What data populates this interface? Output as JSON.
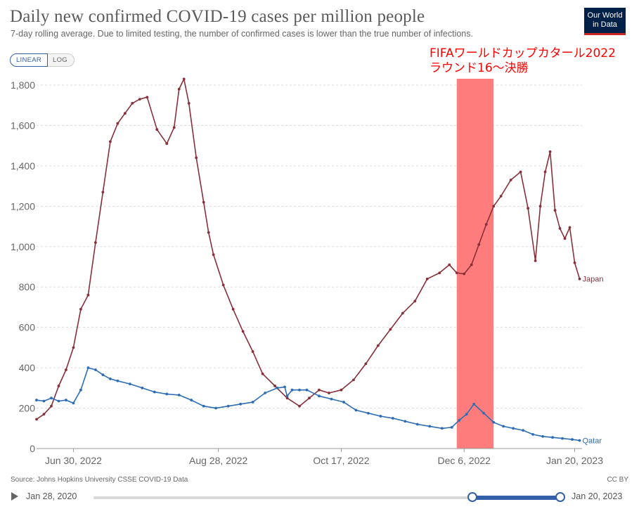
{
  "header": {
    "title": "Daily new confirmed COVID-19 cases per million people",
    "subtitle": "7-day rolling average. Due to limited testing, the number of confirmed cases is lower than the true number of infections.",
    "logo_line1": "Our World",
    "logo_line2": "in Data"
  },
  "controls": {
    "linear_label": "LINEAR",
    "log_label": "LOG",
    "selected": "LINEAR"
  },
  "chart_data": {
    "type": "line",
    "title": "Daily new confirmed COVID-19 cases per million people",
    "xlabel": "",
    "ylabel": "",
    "ylim": [
      0,
      1800
    ],
    "yticks": [
      0,
      200,
      400,
      600,
      800,
      1000,
      1200,
      1400,
      1600,
      1800
    ],
    "ytick_labels": [
      "0",
      "200",
      "400",
      "600",
      "800",
      "1,000",
      "1,200",
      "1,400",
      "1,600",
      "1,800"
    ],
    "xlim": [
      "2022-06-15",
      "2023-01-23"
    ],
    "xticks": [
      "2022-06-30",
      "2022-08-28",
      "2022-10-17",
      "2022-12-06",
      "2023-01-20"
    ],
    "xtick_labels": [
      "Jun 30, 2022",
      "Aug 28, 2022",
      "Oct 17, 2022",
      "Dec 6, 2022",
      "Jan 20, 2023"
    ],
    "grid": "horizontal dashed",
    "annotation": {
      "lines": [
        "FIFAワールドカップカタール2022",
        "ラウンド16〜決勝"
      ],
      "color": "#ff0000",
      "highlight_range": [
        "2022-12-03",
        "2022-12-18"
      ],
      "highlight_color": "#ff7c7c"
    },
    "series": [
      {
        "name": "Japan",
        "color": "#883039",
        "x": [
          "2022-06-15",
          "2022-06-18",
          "2022-06-21",
          "2022-06-24",
          "2022-06-27",
          "2022-06-30",
          "2022-07-03",
          "2022-07-06",
          "2022-07-09",
          "2022-07-12",
          "2022-07-15",
          "2022-07-18",
          "2022-07-21",
          "2022-07-24",
          "2022-07-27",
          "2022-07-30",
          "2022-08-03",
          "2022-08-07",
          "2022-08-10",
          "2022-08-12",
          "2022-08-14",
          "2022-08-16",
          "2022-08-19",
          "2022-08-22",
          "2022-08-24",
          "2022-08-26",
          "2022-08-30",
          "2022-09-03",
          "2022-09-07",
          "2022-09-11",
          "2022-09-15",
          "2022-09-20",
          "2022-09-25",
          "2022-09-30",
          "2022-10-04",
          "2022-10-08",
          "2022-10-12",
          "2022-10-17",
          "2022-10-22",
          "2022-10-27",
          "2022-11-01",
          "2022-11-06",
          "2022-11-11",
          "2022-11-16",
          "2022-11-21",
          "2022-11-26",
          "2022-11-30",
          "2022-12-03",
          "2022-12-06",
          "2022-12-09",
          "2022-12-12",
          "2022-12-15",
          "2022-12-18",
          "2022-12-21",
          "2022-12-25",
          "2022-12-29",
          "2023-01-01",
          "2023-01-04",
          "2023-01-06",
          "2023-01-08",
          "2023-01-10",
          "2023-01-12",
          "2023-01-14",
          "2023-01-16",
          "2023-01-18",
          "2023-01-20",
          "2023-01-22"
        ],
        "y": [
          145,
          170,
          210,
          310,
          390,
          500,
          690,
          760,
          1020,
          1270,
          1520,
          1610,
          1660,
          1710,
          1730,
          1740,
          1580,
          1510,
          1590,
          1780,
          1830,
          1710,
          1440,
          1220,
          1070,
          960,
          810,
          690,
          580,
          480,
          370,
          310,
          250,
          210,
          250,
          290,
          275,
          290,
          340,
          420,
          510,
          590,
          670,
          730,
          840,
          870,
          910,
          870,
          865,
          910,
          1010,
          1110,
          1200,
          1250,
          1330,
          1370,
          1190,
          930,
          1200,
          1370,
          1470,
          1180,
          1090,
          1040,
          1095,
          920,
          840
        ]
      },
      {
        "name": "Qatar",
        "color": "#2c6db5",
        "x": [
          "2022-06-15",
          "2022-06-18",
          "2022-06-21",
          "2022-06-24",
          "2022-06-27",
          "2022-06-30",
          "2022-07-03",
          "2022-07-06",
          "2022-07-09",
          "2022-07-12",
          "2022-07-15",
          "2022-07-18",
          "2022-07-23",
          "2022-07-28",
          "2022-08-02",
          "2022-08-07",
          "2022-08-12",
          "2022-08-17",
          "2022-08-22",
          "2022-08-27",
          "2022-09-01",
          "2022-09-06",
          "2022-09-11",
          "2022-09-16",
          "2022-09-21",
          "2022-09-24",
          "2022-09-25",
          "2022-09-27",
          "2022-09-30",
          "2022-10-03",
          "2022-10-08",
          "2022-10-13",
          "2022-10-18",
          "2022-10-23",
          "2022-10-28",
          "2022-11-02",
          "2022-11-07",
          "2022-11-12",
          "2022-11-17",
          "2022-11-22",
          "2022-11-27",
          "2022-12-01",
          "2022-12-04",
          "2022-12-07",
          "2022-12-10",
          "2022-12-14",
          "2022-12-18",
          "2022-12-22",
          "2022-12-26",
          "2022-12-30",
          "2023-01-03",
          "2023-01-07",
          "2023-01-11",
          "2023-01-15",
          "2023-01-19",
          "2023-01-22"
        ],
        "y": [
          240,
          235,
          250,
          235,
          240,
          225,
          290,
          400,
          390,
          365,
          345,
          335,
          320,
          300,
          280,
          270,
          265,
          240,
          210,
          200,
          210,
          220,
          230,
          275,
          300,
          305,
          260,
          290,
          290,
          290,
          260,
          245,
          230,
          190,
          175,
          160,
          150,
          135,
          120,
          110,
          100,
          105,
          140,
          170,
          220,
          175,
          130,
          110,
          100,
          90,
          70,
          60,
          55,
          50,
          45,
          40
        ]
      }
    ]
  },
  "footer": {
    "source": "Source: Johns Hopkins University CSSE COVID-19 Data",
    "license": "CC BY"
  },
  "timeline": {
    "start_label": "Jan 28, 2020",
    "end_label": "Jan 20, 2023",
    "range_start_fraction": 0.81,
    "range_end_fraction": 1.0
  },
  "colors": {
    "brand_blue": "#3360a9",
    "logo_bg": "#002147",
    "logo_accent": "#ce261e"
  }
}
